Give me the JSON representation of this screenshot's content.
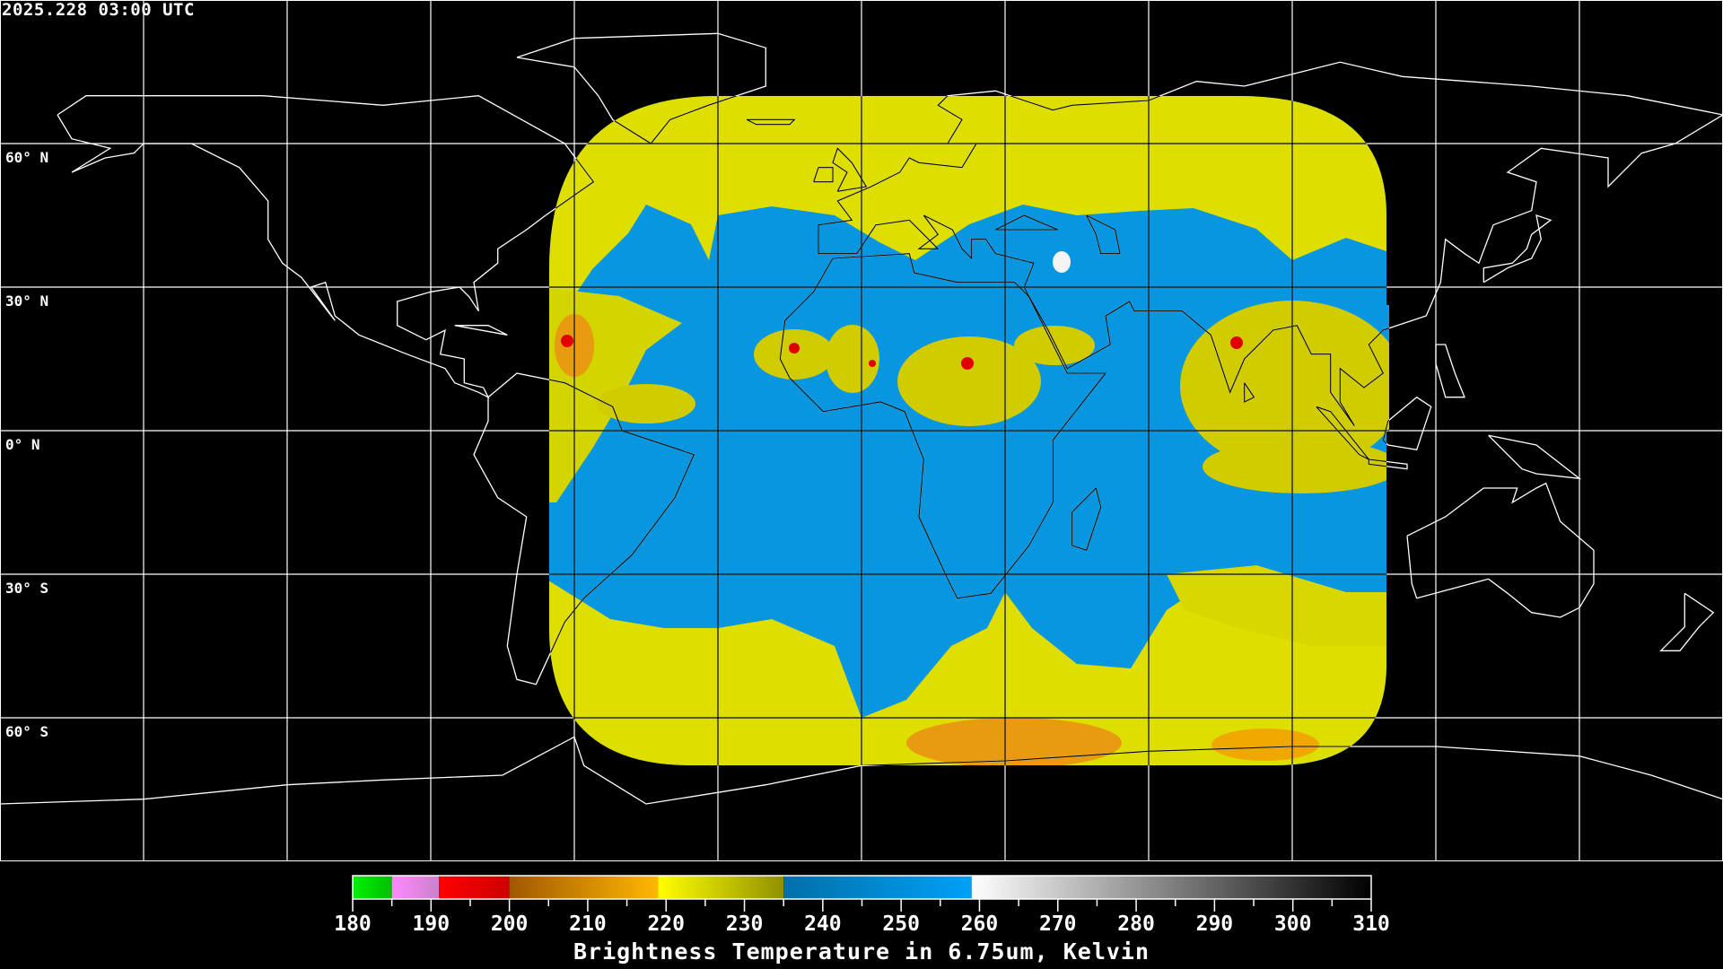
{
  "timestamp": "2025.228 03:00 UTC",
  "lat_labels": [
    "60° N",
    "30° N",
    "0° N",
    "30° S",
    "60° S"
  ],
  "colors": {
    "background": "#000000",
    "outside_lines": "#ffffff",
    "inside_lines": "#000000",
    "moist_blue": "#0896e0",
    "mid_yellow": "#dede00",
    "dry_orange": "#e89a10",
    "cold_red": "#e00000"
  },
  "colorbar": {
    "min": 180,
    "max": 310,
    "major_ticks": [
      180,
      190,
      200,
      210,
      220,
      230,
      240,
      250,
      260,
      270,
      280,
      290,
      300,
      310
    ],
    "minor_step": 5,
    "title": "Brightness Temperature in 6.75um, Kelvin",
    "segments": [
      {
        "from": 180,
        "to": 185,
        "start": "#00f000",
        "end": "#00c000"
      },
      {
        "from": 185,
        "to": 191,
        "start": "#ff88ff",
        "end": "#cc80cc"
      },
      {
        "from": 191,
        "to": 200,
        "start": "#ff0000",
        "end": "#cc0000"
      },
      {
        "from": 200,
        "to": 219,
        "start": "#a05800",
        "end": "#ffb800"
      },
      {
        "from": 219,
        "to": 235,
        "start": "#ffff00",
        "end": "#909000"
      },
      {
        "from": 235,
        "to": 259,
        "start": "#0070a8",
        "end": "#00a0f8"
      },
      {
        "from": 259,
        "to": 310,
        "start": "#ffffff",
        "end": "#000000"
      }
    ]
  }
}
